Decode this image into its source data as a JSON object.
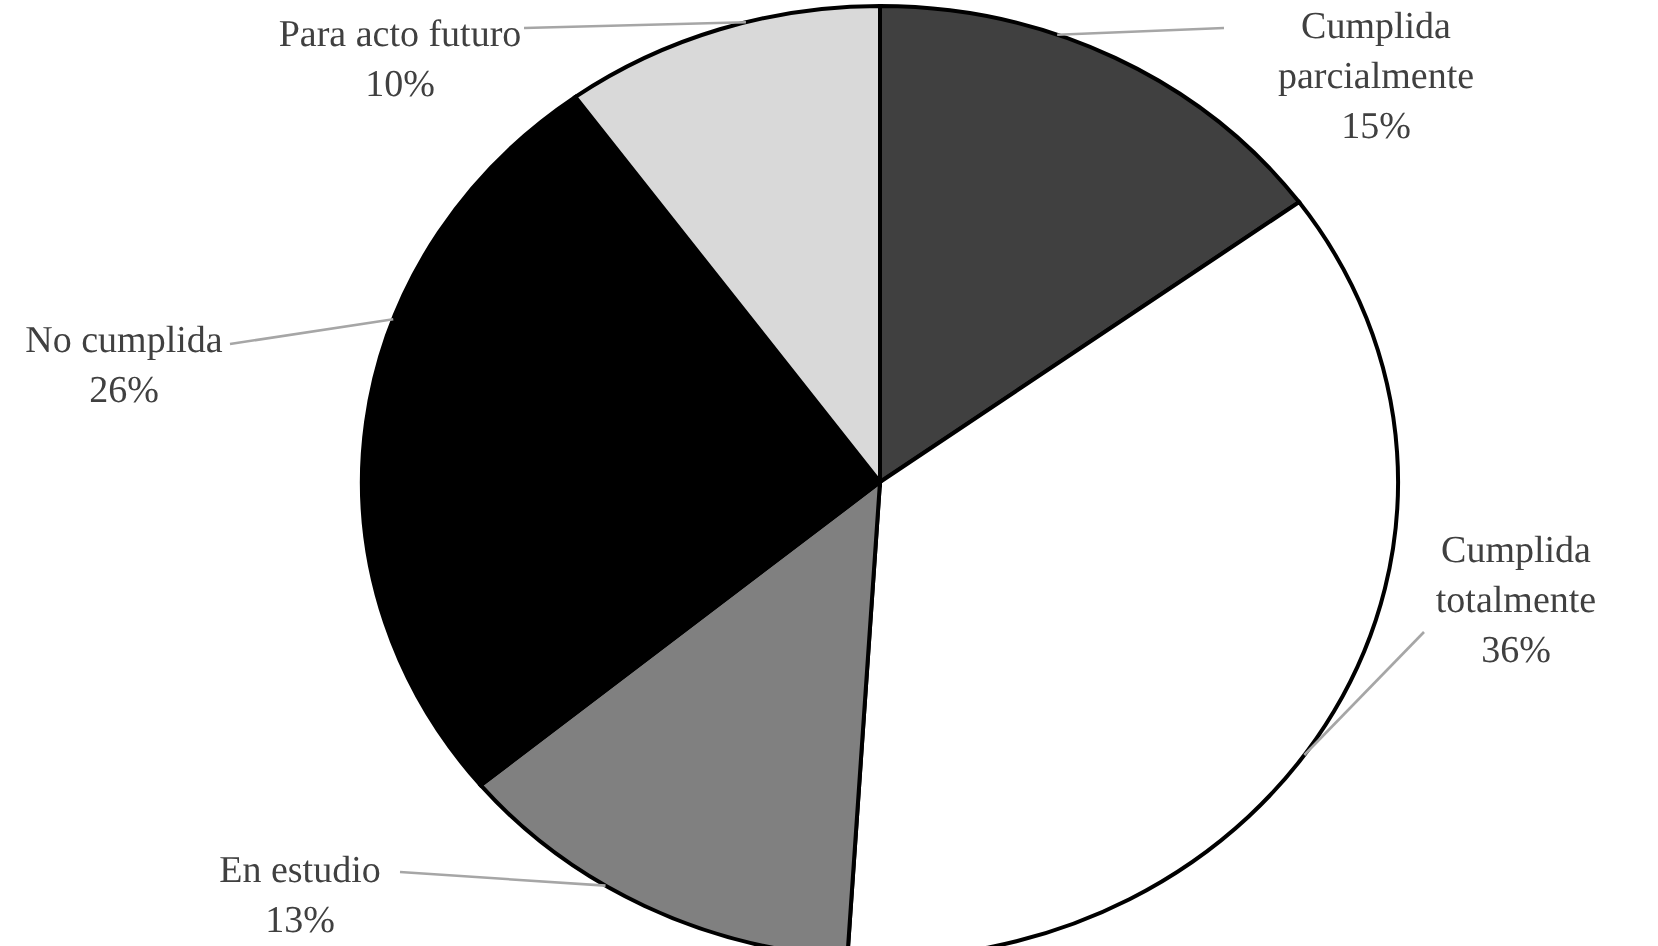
{
  "chart_data": {
    "type": "pie",
    "categories": [
      "Cumplida parcialmente",
      "Cumplida totalmente",
      "En estudio",
      "No cumplida",
      "Para acto futuro"
    ],
    "values": [
      15,
      36,
      13,
      26,
      10
    ],
    "value_labels": [
      "15%",
      "36%",
      "13%",
      "26%",
      "10%"
    ],
    "colors": [
      "#404040",
      "#ffffff",
      "#808080",
      "#000000",
      "#d9d9d9"
    ]
  }
}
